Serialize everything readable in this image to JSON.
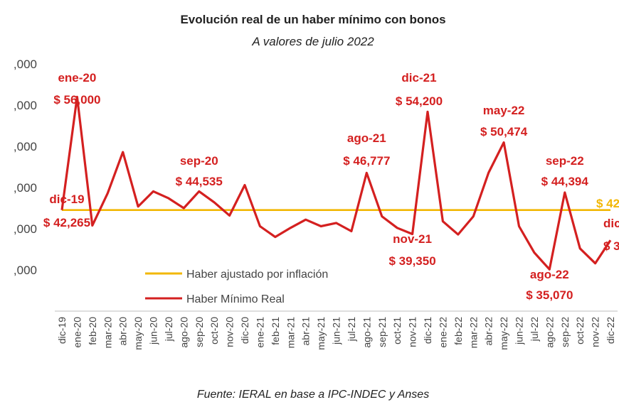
{
  "chart_data": {
    "type": "line",
    "title": "Evolución real de un haber mínimo con bonos",
    "subtitle": "A valores de julio 2022",
    "source": "Fuente: IERAL en base a IPC-INDEC y Anses",
    "ylim": [
      30000,
      60000
    ],
    "yticks": [
      {
        "value": 35000,
        "label": ",000"
      },
      {
        "value": 40000,
        "label": ",000"
      },
      {
        "value": 45000,
        "label": ",000"
      },
      {
        "value": 50000,
        "label": ",000"
      },
      {
        "value": 55000,
        "label": ",000"
      },
      {
        "value": 60000,
        "label": ",000"
      }
    ],
    "categories": [
      "dic-19",
      "ene-20",
      "feb-20",
      "mar-20",
      "abr-20",
      "may-20",
      "jun-20",
      "jul-20",
      "ago-20",
      "sep-20",
      "oct-20",
      "nov-20",
      "dic-20",
      "ene-21",
      "feb-21",
      "mar-21",
      "abr-21",
      "may-21",
      "jun-21",
      "jul-21",
      "ago-21",
      "sep-21",
      "oct-21",
      "nov-21",
      "dic-21",
      "ene-22",
      "feb-22",
      "mar-22",
      "abr-22",
      "may-22",
      "jun-22",
      "jul-22",
      "ago-22",
      "sep-22",
      "oct-22",
      "nov-22",
      "dic-22"
    ],
    "series": [
      {
        "name": "Haber ajustado por inflación",
        "color": "#F2B705",
        "values": [
          42265,
          42265,
          42265,
          42265,
          42265,
          42265,
          42265,
          42265,
          42265,
          42265,
          42265,
          42265,
          42265,
          42265,
          42265,
          42265,
          42265,
          42265,
          42265,
          42265,
          42265,
          42265,
          42265,
          42265,
          42265,
          42265,
          42265,
          42265,
          42265,
          42265,
          42265,
          42265,
          42265,
          42265,
          42265,
          42265,
          42265
        ]
      },
      {
        "name": "Haber Mínimo Real",
        "color": "#D42020",
        "values": [
          42265,
          56000,
          40400,
          44300,
          49300,
          42700,
          44535,
          43700,
          42500,
          44535,
          43200,
          41600,
          45300,
          40300,
          39000,
          40100,
          41100,
          40300,
          40700,
          39700,
          46777,
          41500,
          40100,
          39350,
          54200,
          40900,
          39300,
          41500,
          46800,
          50474,
          40300,
          37100,
          35070,
          44394,
          37600,
          35800,
          38600
        ]
      }
    ],
    "annotations": [
      {
        "index": 0,
        "label": "dic-19",
        "value": "$ 42,265"
      },
      {
        "index": 1,
        "label": "ene-20",
        "value": "$ 56,000"
      },
      {
        "index": 9,
        "label": "sep-20",
        "value": "$ 44,535"
      },
      {
        "index": 20,
        "label": "ago-21",
        "value": "$ 46,777"
      },
      {
        "index": 23,
        "label": "nov-21",
        "value": "$ 39,350"
      },
      {
        "index": 24,
        "label": "dic-21",
        "value": "$ 54,200"
      },
      {
        "index": 29,
        "label": "may-22",
        "value": "$ 50,474"
      },
      {
        "index": 32,
        "label": "ago-22",
        "value": "$ 35,070"
      },
      {
        "index": 33,
        "label": "sep-22",
        "value": "$ 44,394"
      },
      {
        "index": 36,
        "label": "dic",
        "value": "$ 3"
      }
    ],
    "edge_label": "$ 42",
    "legend": [
      "Haber ajustado por inflación",
      "Haber Mínimo Real"
    ]
  }
}
